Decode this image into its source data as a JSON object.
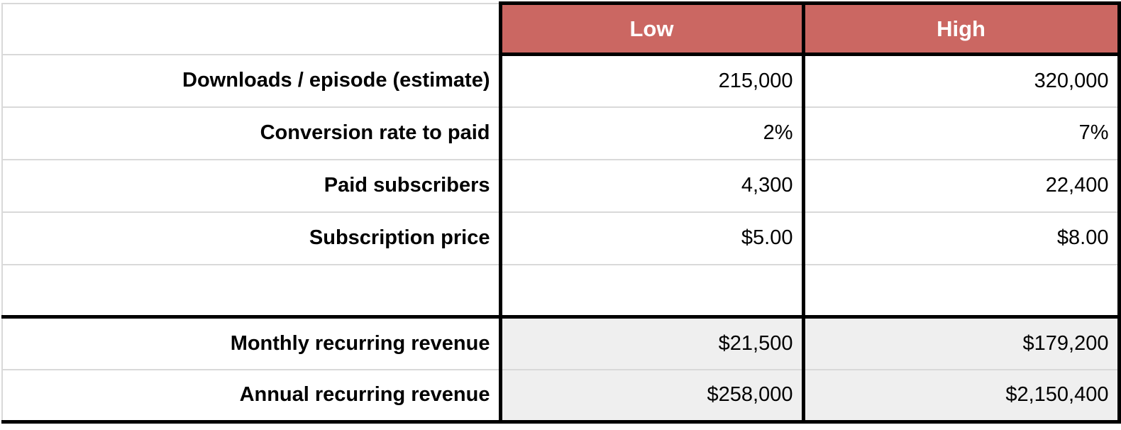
{
  "chart_data": {
    "type": "table",
    "columns": [
      "",
      "Low",
      "High"
    ],
    "rows": [
      {
        "label": "Downloads / episode (estimate)",
        "low": "215,000",
        "high": "320,000"
      },
      {
        "label": "Conversion rate to paid",
        "low": "2%",
        "high": "7%"
      },
      {
        "label": "Paid subscribers",
        "low": "4,300",
        "high": "22,400"
      },
      {
        "label": "Subscription price",
        "low": "$5.00",
        "high": "$8.00"
      },
      {
        "label": "",
        "low": "",
        "high": ""
      },
      {
        "label": "Monthly recurring revenue",
        "low": "$21,500",
        "high": "$179,200"
      },
      {
        "label": "Annual recurring revenue",
        "low": "$258,000",
        "high": "$2,150,400"
      }
    ],
    "colors": {
      "header_bg": "#cb6762",
      "header_text": "#ffffff",
      "result_row_bg": "#efefef",
      "grid_line": "#d9d9d9",
      "strong_border": "#000000",
      "cell_bg": "#ffffff",
      "text": "#000000"
    },
    "layout": {
      "legend": "none",
      "grid": "on"
    }
  }
}
